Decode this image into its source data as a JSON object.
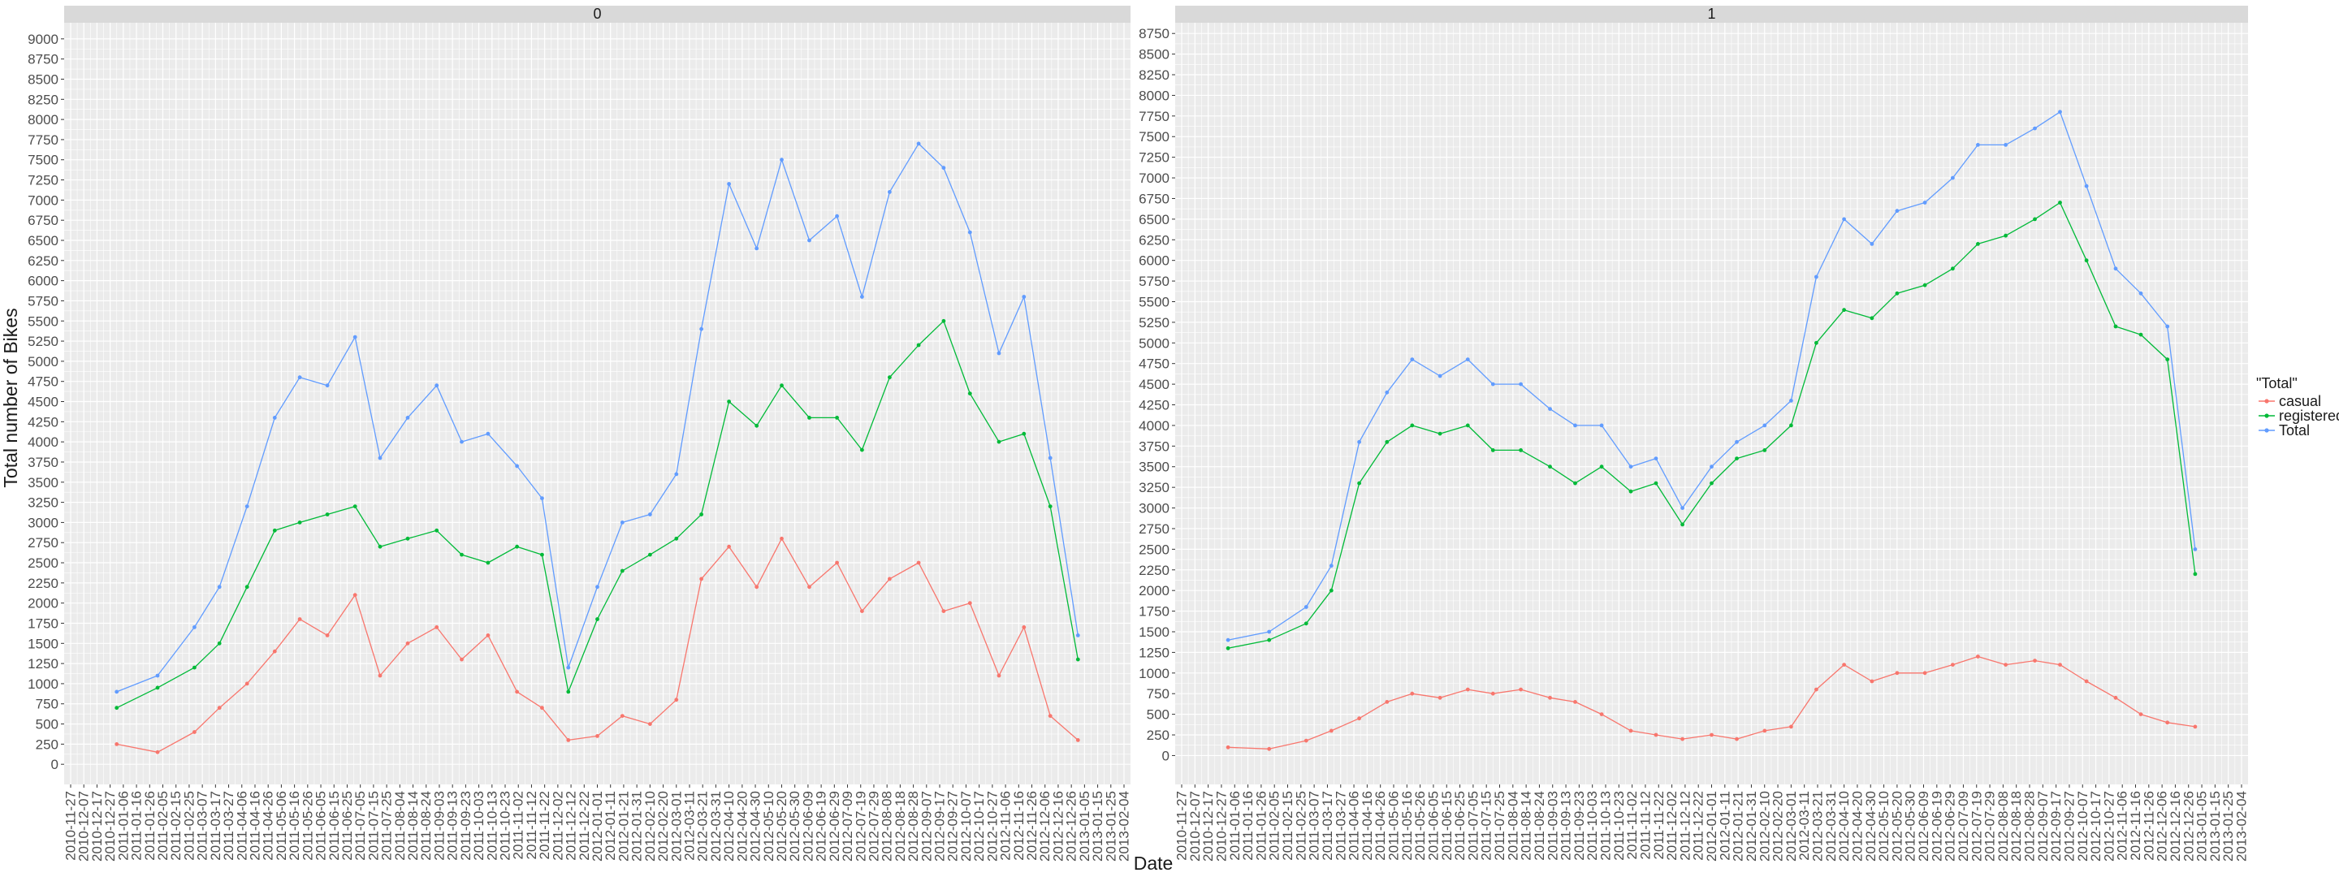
{
  "chart_data": {
    "type": "line",
    "x_axis_title": "Date",
    "y_axis_title": "Total number of Bikes",
    "legend": {
      "title": "\"Total\"",
      "position": "right",
      "entries": [
        {
          "name": "casual",
          "color": "#F8766D"
        },
        {
          "name": "registered",
          "color": "#00BA38"
        },
        {
          "name": "Total",
          "color": "#619CFF"
        }
      ]
    },
    "x_ticks": [
      "2010-11-27",
      "2010-12-07",
      "2010-12-17",
      "2010-12-27",
      "2011-01-06",
      "2011-01-16",
      "2011-01-26",
      "2011-02-05",
      "2011-02-15",
      "2011-02-25",
      "2011-03-07",
      "2011-03-17",
      "2011-03-27",
      "2011-04-06",
      "2011-04-16",
      "2011-04-26",
      "2011-05-06",
      "2011-05-16",
      "2011-05-26",
      "2011-06-05",
      "2011-06-15",
      "2011-06-25",
      "2011-07-05",
      "2011-07-15",
      "2011-07-25",
      "2011-08-04",
      "2011-08-14",
      "2011-08-24",
      "2011-09-03",
      "2011-09-13",
      "2011-09-23",
      "2011-10-03",
      "2011-10-13",
      "2011-10-23",
      "2011-11-02",
      "2011-11-12",
      "2011-11-22",
      "2011-12-02",
      "2011-12-12",
      "2011-12-22",
      "2012-01-01",
      "2012-01-11",
      "2012-01-21",
      "2012-01-31",
      "2012-02-10",
      "2012-02-20",
      "2012-03-01",
      "2012-03-11",
      "2012-03-21",
      "2012-03-31",
      "2012-04-10",
      "2012-04-20",
      "2012-04-30",
      "2012-05-10",
      "2012-05-20",
      "2012-05-30",
      "2012-06-09",
      "2012-06-19",
      "2012-06-29",
      "2012-07-09",
      "2012-07-19",
      "2012-07-29",
      "2012-08-08",
      "2012-08-18",
      "2012-08-28",
      "2012-09-07",
      "2012-09-17",
      "2012-09-27",
      "2012-10-07",
      "2012-10-17",
      "2012-10-27",
      "2012-11-06",
      "2012-11-16",
      "2012-11-26",
      "2012-12-06",
      "2012-12-16",
      "2012-12-26",
      "2013-01-05",
      "2013-01-15",
      "2013-01-25",
      "2013-02-04"
    ],
    "panels": [
      {
        "strip": "0",
        "y_ticks": [
          0,
          250,
          500,
          750,
          1000,
          1250,
          1500,
          1750,
          2000,
          2250,
          2500,
          2750,
          3000,
          3250,
          3500,
          3750,
          4000,
          4250,
          4500,
          4750,
          5000,
          5250,
          5500,
          5750,
          6000,
          6250,
          6500,
          6750,
          7000,
          7250,
          7500,
          7750,
          8000,
          8250,
          8500,
          8750,
          9000
        ],
        "ylim": [
          -250,
          9200
        ],
        "x_anchor_dates": [
          "2011-01-01",
          "2011-02-01",
          "2011-03-01",
          "2011-03-20",
          "2011-04-10",
          "2011-05-01",
          "2011-05-20",
          "2011-06-10",
          "2011-07-01",
          "2011-07-20",
          "2011-08-10",
          "2011-09-01",
          "2011-09-20",
          "2011-10-10",
          "2011-11-01",
          "2011-11-20",
          "2011-12-10",
          "2012-01-01",
          "2012-01-20",
          "2012-02-10",
          "2012-03-01",
          "2012-03-20",
          "2012-04-10",
          "2012-05-01",
          "2012-05-20",
          "2012-06-10",
          "2012-07-01",
          "2012-07-20",
          "2012-08-10",
          "2012-09-01",
          "2012-09-20",
          "2012-10-10",
          "2012-11-01",
          "2012-11-20",
          "2012-12-10",
          "2012-12-31"
        ],
        "series": [
          {
            "name": "casual",
            "values": [
              250,
              150,
              400,
              700,
              1000,
              1400,
              1800,
              1600,
              2100,
              1100,
              1500,
              1700,
              1300,
              1600,
              900,
              700,
              300,
              350,
              600,
              500,
              800,
              2300,
              2700,
              2200,
              2800,
              2200,
              2500,
              1900,
              2300,
              2500,
              1900,
              2000,
              1100,
              1700,
              600,
              300
            ]
          },
          {
            "name": "registered",
            "values": [
              700,
              950,
              1200,
              1500,
              2200,
              2900,
              3000,
              3100,
              3200,
              2700,
              2800,
              2900,
              2600,
              2500,
              2700,
              2600,
              900,
              1800,
              2400,
              2600,
              2800,
              3100,
              4500,
              4200,
              4700,
              4300,
              4300,
              3900,
              4800,
              5200,
              5500,
              4600,
              4000,
              4100,
              3200,
              1300
            ]
          },
          {
            "name": "Total",
            "values": [
              900,
              1100,
              1700,
              2200,
              3200,
              4300,
              4800,
              4700,
              5300,
              3800,
              4300,
              4700,
              4000,
              4100,
              3700,
              3300,
              1200,
              2200,
              3000,
              3100,
              3600,
              5400,
              7200,
              6400,
              7500,
              6500,
              6800,
              5800,
              7100,
              7700,
              7400,
              6600,
              5100,
              5800,
              3800,
              1600
            ]
          }
        ]
      },
      {
        "strip": "1",
        "y_ticks": [
          0,
          250,
          500,
          750,
          1000,
          1250,
          1500,
          1750,
          2000,
          2250,
          2500,
          2750,
          3000,
          3250,
          3500,
          3750,
          4000,
          4250,
          4500,
          4750,
          5000,
          5250,
          5500,
          5750,
          6000,
          6250,
          6500,
          6750,
          7000,
          7250,
          7500,
          7750,
          8000,
          8250,
          8500,
          8750
        ],
        "ylim": [
          -350,
          8880
        ],
        "x_anchor_dates": [
          "2011-01-01",
          "2011-02-01",
          "2011-03-01",
          "2011-03-20",
          "2011-04-10",
          "2011-05-01",
          "2011-05-20",
          "2011-06-10",
          "2011-07-01",
          "2011-07-20",
          "2011-08-10",
          "2011-09-01",
          "2011-09-20",
          "2011-10-10",
          "2011-11-01",
          "2011-11-20",
          "2011-12-10",
          "2012-01-01",
          "2012-01-20",
          "2012-02-10",
          "2012-03-01",
          "2012-03-20",
          "2012-04-10",
          "2012-05-01",
          "2012-05-20",
          "2012-06-10",
          "2012-07-01",
          "2012-07-20",
          "2012-08-10",
          "2012-09-01",
          "2012-09-20",
          "2012-10-10",
          "2012-11-01",
          "2012-11-20",
          "2012-12-10",
          "2012-12-31"
        ],
        "series": [
          {
            "name": "casual",
            "values": [
              100,
              80,
              180,
              300,
              450,
              650,
              750,
              700,
              800,
              750,
              800,
              700,
              650,
              500,
              300,
              250,
              200,
              250,
              200,
              300,
              350,
              800,
              1100,
              900,
              1000,
              1000,
              1100,
              1200,
              1100,
              1150,
              1100,
              900,
              700,
              500,
              400,
              350
            ]
          },
          {
            "name": "registered",
            "values": [
              1300,
              1400,
              1600,
              2000,
              3300,
              3800,
              4000,
              3900,
              4000,
              3700,
              3700,
              3500,
              3300,
              3500,
              3200,
              3300,
              2800,
              3300,
              3600,
              3700,
              4000,
              5000,
              5400,
              5300,
              5600,
              5700,
              5900,
              6200,
              6300,
              6500,
              6700,
              6000,
              5200,
              5100,
              4800,
              2200
            ]
          },
          {
            "name": "Total",
            "values": [
              1400,
              1500,
              1800,
              2300,
              3800,
              4400,
              4800,
              4600,
              4800,
              4500,
              4500,
              4200,
              4000,
              4000,
              3500,
              3600,
              3000,
              3500,
              3800,
              4000,
              4300,
              5800,
              6500,
              6200,
              6600,
              6700,
              7000,
              7400,
              7400,
              7600,
              7800,
              6900,
              5900,
              5600,
              5200,
              2500
            ]
          }
        ]
      }
    ]
  }
}
